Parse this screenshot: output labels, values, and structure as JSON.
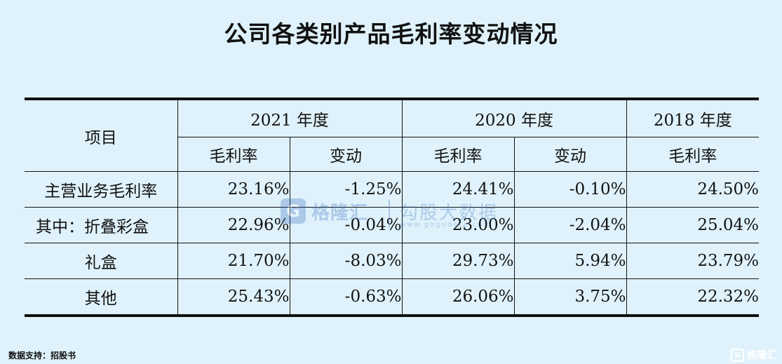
{
  "title": "公司各类别产品毛利率变动情况",
  "table": {
    "item_header": "项目",
    "year_headers": [
      "2021 年度",
      "2020 年度",
      "2018 年度"
    ],
    "sub_headers": [
      "毛利率",
      "变动",
      "毛利率",
      "变动",
      "毛利率"
    ],
    "rows": [
      {
        "label": "主营业务毛利率",
        "values": [
          "23.16%",
          "-1.25%",
          "24.41%",
          "-0.10%",
          "24.50%"
        ]
      },
      {
        "label": "其中：折叠彩盒",
        "values": [
          "22.96%",
          "-0.04%",
          "23.00%",
          "-2.04%",
          "25.04%"
        ]
      },
      {
        "label": "礼盒",
        "values": [
          "21.70%",
          "-8.03%",
          "29.73%",
          "5.94%",
          "23.79%"
        ]
      },
      {
        "label": "其他",
        "values": [
          "25.43%",
          "-0.63%",
          "26.06%",
          "3.75%",
          "22.32%"
        ]
      }
    ]
  },
  "watermark": {
    "icon": "G",
    "brand": "格隆汇",
    "slogan": "勾股大数据",
    "url": "www.gogudata.com"
  },
  "source": "数据支持：招股书",
  "corner_logo": {
    "icon": "G",
    "text": "格隆汇"
  }
}
